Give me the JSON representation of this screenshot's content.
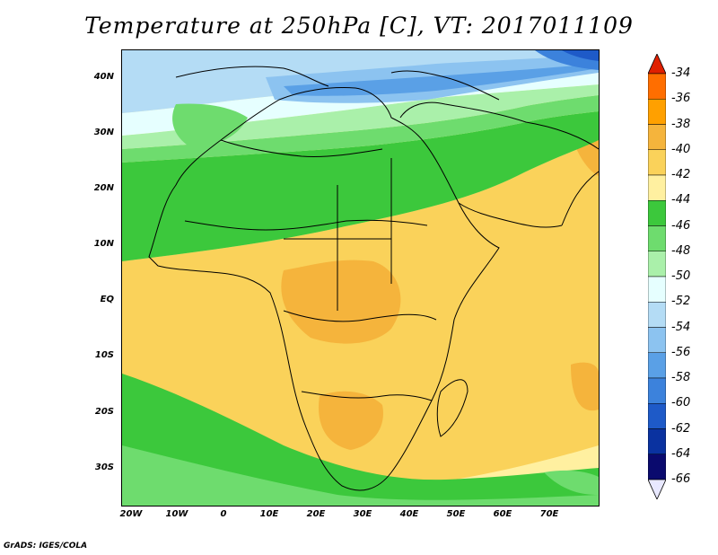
{
  "title": "Temperature at 250hPa [C], VT: 2017011109",
  "footer": "GrADS: IGES/COLA",
  "lat_labels": [
    "40N",
    "30N",
    "20N",
    "10N",
    "EQ",
    "10S",
    "20S",
    "30S"
  ],
  "lon_labels": [
    "20W",
    "10W",
    "0",
    "10E",
    "20E",
    "30E",
    "40E",
    "50E",
    "60E",
    "70E"
  ],
  "colorbar": {
    "labels": [
      "-34",
      "-36",
      "-38",
      "-40",
      "-42",
      "-44",
      "-46",
      "-48",
      "-50",
      "-52",
      "-54",
      "-56",
      "-58",
      "-60",
      "-62",
      "-64",
      "-66"
    ],
    "colors": [
      "#ff3200",
      "#ff6e00",
      "#ffa000",
      "#f5b43c",
      "#fad25a",
      "#fff0a0",
      "#3cc83c",
      "#6edc6e",
      "#aaf0aa",
      "#e6ffff",
      "#b4dcf5",
      "#8cc3f0",
      "#5aa0e6",
      "#3c82dc",
      "#1e5ac8",
      "#0a32a0",
      "#0a0a6e"
    ],
    "top_triangle_color": "#e02000",
    "bottom_triangle_color": "#e8e8ff"
  }
}
